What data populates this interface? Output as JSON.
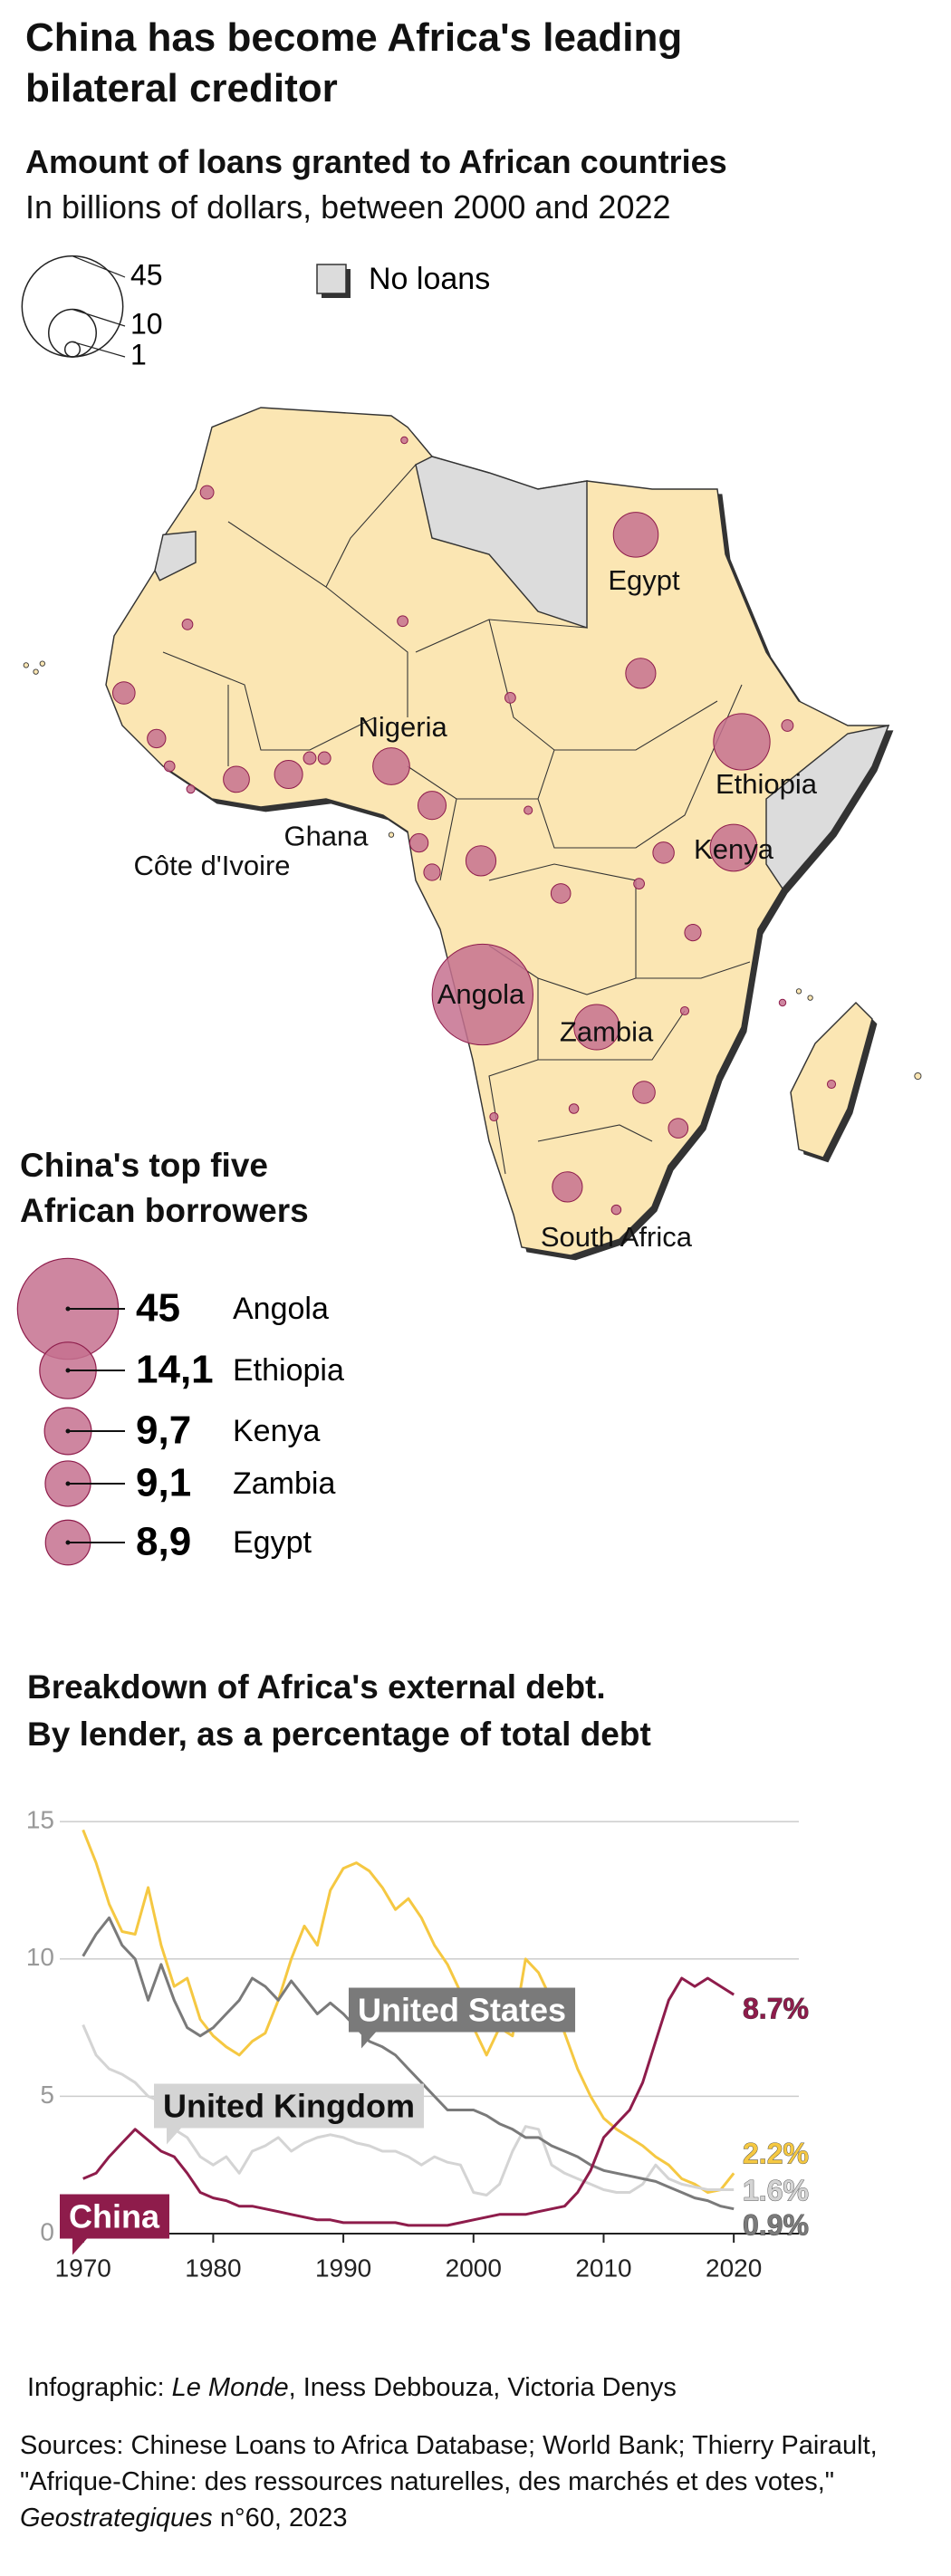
{
  "header": {
    "title": "China has become Africa's leading bilateral creditor"
  },
  "map": {
    "title": "Amount of loans granted to African countries",
    "subtitle": "In billions of dollars, between 2000 and 2022",
    "size_legend": [
      45,
      10,
      1
    ],
    "no_loans_label": "No loans",
    "bubbles": [
      {
        "label": "Egypt",
        "value": 8.9
      },
      {
        "label": "Nigeria",
        "value": 6
      },
      {
        "label": "Ethiopia",
        "value": 14.1
      },
      {
        "label": "Kenya",
        "value": 9.7
      },
      {
        "label": "Angola",
        "value": 45
      },
      {
        "label": "Zambia",
        "value": 9.1
      },
      {
        "label": "South Africa",
        "value": 4
      },
      {
        "label": "Côte d'Ivoire",
        "value": 3
      },
      {
        "label": "Ghana",
        "value": 3.5
      },
      {
        "label": null,
        "value": 4
      },
      {
        "label": null,
        "value": 3.5
      },
      {
        "label": null,
        "value": 4
      },
      {
        "label": null,
        "value": 1.7
      },
      {
        "label": null,
        "value": 2.2
      },
      {
        "label": null,
        "value": 1.7
      },
      {
        "label": null,
        "value": 1.2
      },
      {
        "label": null,
        "value": 1.5
      },
      {
        "label": null,
        "value": 2.2
      },
      {
        "label": null,
        "value": 2
      },
      {
        "label": null,
        "value": 1.5
      },
      {
        "label": null,
        "value": 1.2
      },
      {
        "label": null,
        "value": 0.8
      },
      {
        "label": null,
        "value": 0.5
      },
      {
        "label": null,
        "value": 0.5
      },
      {
        "label": null,
        "value": 0.5
      },
      {
        "label": null,
        "value": 0.6
      },
      {
        "label": null,
        "value": 0.5
      },
      {
        "label": null,
        "value": 0.7
      },
      {
        "label": null,
        "value": 0.7
      },
      {
        "label": null,
        "value": 0.2
      },
      {
        "label": null,
        "value": 0.3
      },
      {
        "label": null,
        "value": 0.4
      },
      {
        "label": null,
        "value": 0.3
      },
      {
        "label": null,
        "value": 0.3
      },
      {
        "label": null,
        "value": 0.5
      },
      {
        "label": null,
        "value": 0.3
      },
      {
        "label": null,
        "value": 0.3
      },
      {
        "label": null,
        "value": 0.4
      },
      {
        "label": null,
        "value": 0.2
      }
    ]
  },
  "top_five": {
    "title": "China's top five African borrowers",
    "categories": [
      "Angola",
      "Ethiopia",
      "Kenya",
      "Zambia",
      "Egypt"
    ],
    "values": [
      45,
      14.1,
      9.7,
      9.1,
      8.9
    ],
    "value_labels": [
      "45",
      "14,1",
      "9,7",
      "9,1",
      "8,9"
    ]
  },
  "chart_data": {
    "type": "line",
    "title": "Breakdown of Africa's external debt.",
    "subtitle": "By lender, as a percentage of total debt",
    "x": [
      1970,
      1971,
      1972,
      1973,
      1974,
      1975,
      1976,
      1977,
      1978,
      1979,
      1980,
      1981,
      1982,
      1983,
      1984,
      1985,
      1986,
      1987,
      1988,
      1989,
      1990,
      1991,
      1992,
      1993,
      1994,
      1995,
      1996,
      1997,
      1998,
      1999,
      2000,
      2001,
      2002,
      2003,
      2004,
      2005,
      2006,
      2007,
      2008,
      2009,
      2010,
      2011,
      2012,
      2013,
      2014,
      2015,
      2016,
      2017,
      2018,
      2019,
      2020
    ],
    "xlim": [
      1968,
      2025
    ],
    "xticks": [
      1970,
      1980,
      1990,
      2000,
      2010,
      2020
    ],
    "ylim": [
      0,
      15.5
    ],
    "yticks": [
      0,
      5,
      10,
      15
    ],
    "grid": true,
    "series": [
      {
        "name": null,
        "color": "#f5c842",
        "end_label": "2.2%",
        "values": [
          14.7,
          13.5,
          12.0,
          11.0,
          10.9,
          12.6,
          10.5,
          9.0,
          9.3,
          7.8,
          7.2,
          6.8,
          6.5,
          7.0,
          7.3,
          8.5,
          10.0,
          11.2,
          10.5,
          12.5,
          13.3,
          13.5,
          13.2,
          12.6,
          11.8,
          12.2,
          11.5,
          10.5,
          9.8,
          8.8,
          7.5,
          6.5,
          7.5,
          7.2,
          10.0,
          9.5,
          8.5,
          7.3,
          6.0,
          5.0,
          4.2,
          3.8,
          3.5,
          3.2,
          2.8,
          2.5,
          2.0,
          1.8,
          1.5,
          1.6,
          2.2
        ]
      },
      {
        "name": "United Kingdom",
        "color": "#d4d4d4",
        "end_label": "1.6%",
        "values": [
          7.6,
          6.5,
          6.0,
          5.8,
          5.5,
          5.0,
          4.8,
          3.8,
          3.5,
          2.8,
          2.5,
          2.8,
          2.2,
          3.0,
          3.2,
          3.5,
          3.0,
          3.3,
          3.5,
          3.6,
          3.5,
          3.3,
          3.2,
          3.0,
          3.0,
          2.8,
          2.5,
          2.8,
          2.6,
          2.5,
          1.5,
          1.4,
          1.8,
          3.0,
          3.9,
          3.8,
          2.5,
          2.2,
          2.0,
          1.8,
          1.6,
          1.5,
          1.5,
          1.8,
          2.5,
          2.0,
          1.8,
          1.7,
          1.6,
          1.6,
          1.6
        ]
      },
      {
        "name": "United States",
        "color": "#7a7a7a",
        "end_label": "0.9%",
        "values": [
          10.1,
          10.9,
          11.5,
          10.5,
          10.0,
          8.5,
          9.8,
          8.5,
          7.5,
          7.2,
          7.5,
          8.0,
          8.5,
          9.3,
          9.0,
          8.5,
          9.2,
          8.6,
          8.0,
          8.4,
          8.0,
          7.5,
          7.0,
          6.8,
          6.5,
          6.0,
          5.5,
          5.0,
          4.5,
          4.5,
          4.5,
          4.3,
          4.0,
          3.8,
          3.5,
          3.5,
          3.2,
          3.0,
          2.8,
          2.5,
          2.3,
          2.2,
          2.1,
          2.0,
          1.9,
          1.7,
          1.5,
          1.3,
          1.2,
          1.0,
          0.9
        ]
      },
      {
        "name": "China",
        "color": "#8e1c4b",
        "end_label": "8.7%",
        "values": [
          2.0,
          2.2,
          2.8,
          3.3,
          3.8,
          3.4,
          3.0,
          2.8,
          2.2,
          1.5,
          1.3,
          1.2,
          1.0,
          1.0,
          0.9,
          0.8,
          0.7,
          0.6,
          0.5,
          0.5,
          0.4,
          0.4,
          0.4,
          0.4,
          0.4,
          0.3,
          0.3,
          0.3,
          0.3,
          0.4,
          0.5,
          0.6,
          0.7,
          0.7,
          0.7,
          0.8,
          0.9,
          1.0,
          1.5,
          2.3,
          3.5,
          4.0,
          4.5,
          5.5,
          7.0,
          8.5,
          9.3,
          9.0,
          9.3,
          9.0,
          8.7
        ]
      }
    ]
  },
  "footer": {
    "credit": [
      "Infographic:",
      "Le Monde",
      ", Iness Debbouza, Victoria Denys"
    ],
    "sources": [
      "Sources: Chinese Loans to Africa Database; World Bank; Thierry Pairault, \"Afrique-Chine: des ressources naturelles, des marchés et des votes,\"",
      "Geostrategiques",
      "n°60, 2023"
    ]
  }
}
